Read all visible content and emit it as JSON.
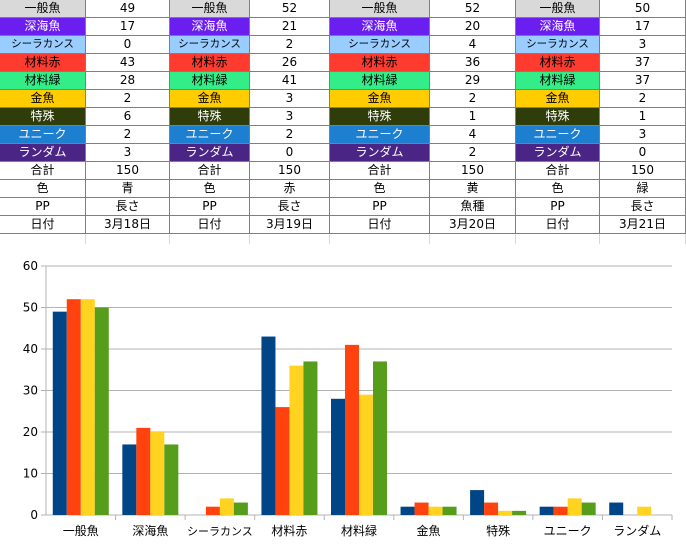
{
  "sheet": {
    "blocks": [
      {
        "rows": [
          {
            "label": "一般魚",
            "value": "49"
          },
          {
            "label": "深海魚",
            "value": "17"
          },
          {
            "label": "シーラカンス",
            "value": "0"
          },
          {
            "label": "材料赤",
            "value": "43"
          },
          {
            "label": "材料緑",
            "value": "28"
          },
          {
            "label": "金魚",
            "value": "2"
          },
          {
            "label": "特殊",
            "value": "6"
          },
          {
            "label": "ユニーク",
            "value": "2"
          },
          {
            "label": "ランダム",
            "value": "3"
          },
          {
            "label": "合計",
            "value": "150"
          },
          {
            "label": "色",
            "value": "青"
          },
          {
            "label": "PP",
            "value": "長さ"
          },
          {
            "label": "日付",
            "value": "3月18日"
          }
        ]
      },
      {
        "rows": [
          {
            "label": "一般魚",
            "value": "52"
          },
          {
            "label": "深海魚",
            "value": "21"
          },
          {
            "label": "シーラカンス",
            "value": "2"
          },
          {
            "label": "材料赤",
            "value": "26"
          },
          {
            "label": "材料緑",
            "value": "41"
          },
          {
            "label": "金魚",
            "value": "3"
          },
          {
            "label": "特殊",
            "value": "3"
          },
          {
            "label": "ユニーク",
            "value": "2"
          },
          {
            "label": "ランダム",
            "value": "0"
          },
          {
            "label": "合計",
            "value": "150"
          },
          {
            "label": "色",
            "value": "赤"
          },
          {
            "label": "PP",
            "value": "長さ"
          },
          {
            "label": "日付",
            "value": "3月19日"
          }
        ]
      },
      {
        "rows": [
          {
            "label": "一般魚",
            "value": "52"
          },
          {
            "label": "深海魚",
            "value": "20"
          },
          {
            "label": "シーラカンス",
            "value": "4"
          },
          {
            "label": "材料赤",
            "value": "36"
          },
          {
            "label": "材料緑",
            "value": "29"
          },
          {
            "label": "金魚",
            "value": "2"
          },
          {
            "label": "特殊",
            "value": "1"
          },
          {
            "label": "ユニーク",
            "value": "4"
          },
          {
            "label": "ランダム",
            "value": "2"
          },
          {
            "label": "合計",
            "value": "150"
          },
          {
            "label": "色",
            "value": "黄"
          },
          {
            "label": "PP",
            "value": "魚種"
          },
          {
            "label": "日付",
            "value": "3月20日"
          }
        ]
      },
      {
        "rows": [
          {
            "label": "一般魚",
            "value": "50"
          },
          {
            "label": "深海魚",
            "value": "17"
          },
          {
            "label": "シーラカンス",
            "value": "3"
          },
          {
            "label": "材料赤",
            "value": "37"
          },
          {
            "label": "材料緑",
            "value": "37"
          },
          {
            "label": "金魚",
            "value": "2"
          },
          {
            "label": "特殊",
            "value": "1"
          },
          {
            "label": "ユニーク",
            "value": "3"
          },
          {
            "label": "ランダム",
            "value": "0"
          },
          {
            "label": "合計",
            "value": "150"
          },
          {
            "label": "色",
            "value": "緑"
          },
          {
            "label": "PP",
            "value": "長さ"
          },
          {
            "label": "日付",
            "value": "3月21日"
          }
        ]
      }
    ],
    "row_styles": [
      {
        "bg": "#d9d9d9",
        "fg": "#000000"
      },
      {
        "bg": "#6a1ef0",
        "fg": "#ffffff"
      },
      {
        "bg": "#99ccff",
        "fg": "#000000"
      },
      {
        "bg": "#ff3b30",
        "fg": "#000000"
      },
      {
        "bg": "#33ee88",
        "fg": "#000000"
      },
      {
        "bg": "#ffcc00",
        "fg": "#000000"
      },
      {
        "bg": "#2e3d0a",
        "fg": "#ffffff"
      },
      {
        "bg": "#1c7fd0",
        "fg": "#ffffff"
      },
      {
        "bg": "#4b2585",
        "fg": "#ffffff"
      },
      {
        "bg": "#ffffff",
        "fg": "#000000"
      },
      {
        "bg": "#ffffff",
        "fg": "#000000"
      },
      {
        "bg": "#ffffff",
        "fg": "#000000"
      },
      {
        "bg": "#ffffff",
        "fg": "#000000"
      }
    ]
  },
  "chart_data": {
    "type": "bar",
    "title": "",
    "xlabel": "",
    "ylabel": "",
    "ylim": [
      0,
      60
    ],
    "yticks": [
      0,
      10,
      20,
      30,
      40,
      50,
      60
    ],
    "grid": true,
    "legend": "none",
    "categories": [
      "一般魚",
      "深海魚",
      "シーラカンス",
      "材料赤",
      "材料緑",
      "金魚",
      "特殊",
      "ユニーク",
      "ランダム"
    ],
    "series": [
      {
        "color": "#004586",
        "values": [
          49,
          17,
          0,
          43,
          28,
          2,
          6,
          2,
          3
        ]
      },
      {
        "color": "#ff420e",
        "values": [
          52,
          21,
          2,
          26,
          41,
          3,
          3,
          2,
          0
        ]
      },
      {
        "color": "#ffd320",
        "values": [
          52,
          20,
          4,
          36,
          29,
          2,
          1,
          4,
          2
        ]
      },
      {
        "color": "#579d1c",
        "values": [
          50,
          17,
          3,
          37,
          37,
          2,
          1,
          3,
          0
        ]
      }
    ]
  }
}
